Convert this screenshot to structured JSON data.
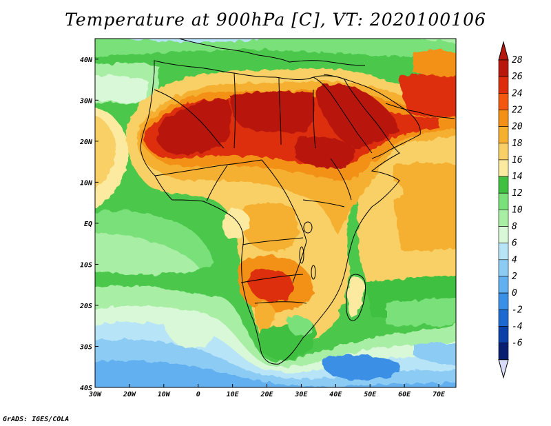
{
  "title": "Temperature at 900hPa [C], VT: 2020100106",
  "credit": "GrADS: IGES/COLA",
  "map": {
    "lon_range": [
      -30,
      75
    ],
    "lat_range": [
      -40,
      45
    ],
    "lon_ticks": [
      "30W",
      "20W",
      "10W",
      "0",
      "10E",
      "20E",
      "30E",
      "40E",
      "50E",
      "60E",
      "70E"
    ],
    "lat_ticks": [
      "40N",
      "30N",
      "20N",
      "10N",
      "EQ",
      "10S",
      "20S",
      "30S",
      "40S"
    ],
    "variable": "Temperature at 900hPa",
    "units": "C"
  },
  "colorbar": {
    "labels": [
      "28",
      "26",
      "24",
      "22",
      "20",
      "18",
      "16",
      "14",
      "12",
      "10",
      "8",
      "6",
      "4",
      "2",
      "0",
      "-2",
      "-4",
      "-6"
    ],
    "colors": [
      "#b8180c",
      "#dd2d0c",
      "#f25810",
      "#f39116",
      "#f5b030",
      "#f8d065",
      "#fbeaa0",
      "#40c040",
      "#7ae07a",
      "#a8eea4",
      "#d8f8d8",
      "#b8e4f8",
      "#8ccbf4",
      "#62b0f0",
      "#3a90e6",
      "#1c6ad0",
      "#0a40a8",
      "#081e70"
    ],
    "top_arrow_color": "#b8180c",
    "bottom_arrow_color": "#d8dcf8"
  }
}
